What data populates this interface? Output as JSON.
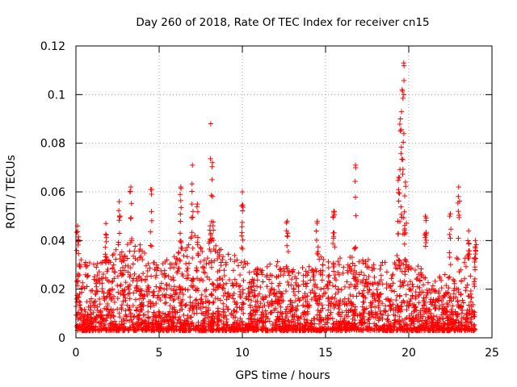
{
  "chart_data": {
    "type": "scatter",
    "title": "Day 260 of 2018, Rate Of TEC Index for receiver cn15",
    "xlabel": "GPS time / hours",
    "ylabel": "ROTI / TECUs",
    "xlim": [
      0,
      25
    ],
    "ylim": [
      0,
      0.12
    ],
    "xticks": [
      0,
      5,
      10,
      15,
      20,
      25
    ],
    "xtick_labels": [
      "0",
      "5",
      "10",
      "15",
      "20",
      "25"
    ],
    "yticks": [
      0,
      0.02,
      0.04,
      0.06,
      0.08,
      0.1,
      0.12
    ],
    "ytick_labels": [
      "0",
      "0.02",
      "0.04",
      "0.06",
      "0.08",
      "0.1",
      "0.12"
    ],
    "grid": true,
    "marker": "+",
    "color": "#ff0000",
    "x_range": [
      0,
      24
    ],
    "peaks": [
      {
        "x": 0.1,
        "y": 0.046
      },
      {
        "x": 1.8,
        "y": 0.047
      },
      {
        "x": 2.6,
        "y": 0.056
      },
      {
        "x": 3.3,
        "y": 0.062
      },
      {
        "x": 4.5,
        "y": 0.061
      },
      {
        "x": 6.3,
        "y": 0.062
      },
      {
        "x": 7.0,
        "y": 0.071
      },
      {
        "x": 7.3,
        "y": 0.055
      },
      {
        "x": 8.1,
        "y": 0.088
      },
      {
        "x": 8.2,
        "y": 0.072
      },
      {
        "x": 10.0,
        "y": 0.06
      },
      {
        "x": 12.7,
        "y": 0.048
      },
      {
        "x": 14.5,
        "y": 0.048
      },
      {
        "x": 15.5,
        "y": 0.052
      },
      {
        "x": 16.8,
        "y": 0.071
      },
      {
        "x": 19.4,
        "y": 0.066
      },
      {
        "x": 19.5,
        "y": 0.09
      },
      {
        "x": 19.6,
        "y": 0.102
      },
      {
        "x": 19.7,
        "y": 0.113
      },
      {
        "x": 19.8,
        "y": 0.064
      },
      {
        "x": 21.0,
        "y": 0.05
      },
      {
        "x": 22.5,
        "y": 0.051
      },
      {
        "x": 23.0,
        "y": 0.062
      },
      {
        "x": 23.6,
        "y": 0.044
      },
      {
        "x": 24.0,
        "y": 0.04
      }
    ],
    "envelope": [
      {
        "x": 0,
        "y": 0.035
      },
      {
        "x": 1,
        "y": 0.03
      },
      {
        "x": 2,
        "y": 0.035
      },
      {
        "x": 3,
        "y": 0.04
      },
      {
        "x": 4,
        "y": 0.038
      },
      {
        "x": 5,
        "y": 0.03
      },
      {
        "x": 6,
        "y": 0.035
      },
      {
        "x": 7,
        "y": 0.042
      },
      {
        "x": 8,
        "y": 0.042
      },
      {
        "x": 9,
        "y": 0.035
      },
      {
        "x": 10,
        "y": 0.033
      },
      {
        "x": 11,
        "y": 0.03
      },
      {
        "x": 12,
        "y": 0.032
      },
      {
        "x": 13,
        "y": 0.028
      },
      {
        "x": 14,
        "y": 0.03
      },
      {
        "x": 15,
        "y": 0.035
      },
      {
        "x": 16,
        "y": 0.033
      },
      {
        "x": 17,
        "y": 0.035
      },
      {
        "x": 18,
        "y": 0.03
      },
      {
        "x": 19,
        "y": 0.035
      },
      {
        "x": 20,
        "y": 0.032
      },
      {
        "x": 21,
        "y": 0.028
      },
      {
        "x": 22,
        "y": 0.025
      },
      {
        "x": 23,
        "y": 0.035
      },
      {
        "x": 24,
        "y": 0.032
      }
    ]
  }
}
